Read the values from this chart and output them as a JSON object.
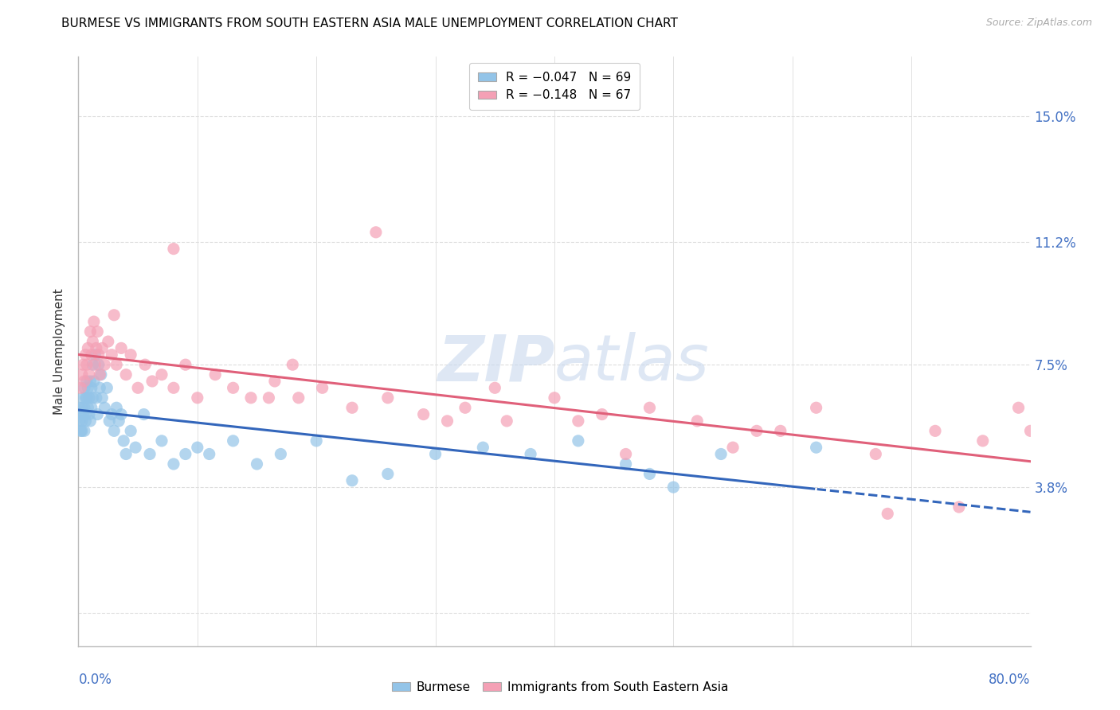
{
  "title": "BURMESE VS IMMIGRANTS FROM SOUTH EASTERN ASIA MALE UNEMPLOYMENT CORRELATION CHART",
  "source": "Source: ZipAtlas.com",
  "ylabel": "Male Unemployment",
  "yticks": [
    0.0,
    0.038,
    0.075,
    0.112,
    0.15
  ],
  "ytick_labels_right": [
    "",
    "3.8%",
    "7.5%",
    "11.2%",
    "15.0%"
  ],
  "xlim": [
    0.0,
    0.8
  ],
  "ylim": [
    -0.01,
    0.168
  ],
  "legend_r1": "R = −0.047",
  "legend_n1": "N = 69",
  "legend_r2": "R = −0.148",
  "legend_n2": "N = 67",
  "color_blue": "#93C4E8",
  "color_pink": "#F4A0B5",
  "color_blue_line": "#3366BB",
  "color_pink_line": "#E0607A",
  "watermark_color": "#C8D8EE",
  "background_color": "#ffffff",
  "grid_color": "#DDDDDD",
  "axis_label_color": "#4472C4",
  "title_fontsize": 11,
  "burmese_x": [
    0.001,
    0.001,
    0.002,
    0.002,
    0.003,
    0.003,
    0.003,
    0.004,
    0.004,
    0.005,
    0.005,
    0.005,
    0.006,
    0.006,
    0.006,
    0.007,
    0.007,
    0.008,
    0.008,
    0.009,
    0.009,
    0.01,
    0.01,
    0.011,
    0.011,
    0.012,
    0.012,
    0.013,
    0.014,
    0.015,
    0.016,
    0.017,
    0.018,
    0.019,
    0.02,
    0.022,
    0.024,
    0.026,
    0.028,
    0.03,
    0.032,
    0.034,
    0.036,
    0.038,
    0.04,
    0.044,
    0.048,
    0.055,
    0.06,
    0.07,
    0.08,
    0.09,
    0.1,
    0.11,
    0.13,
    0.15,
    0.17,
    0.2,
    0.23,
    0.26,
    0.3,
    0.34,
    0.38,
    0.42,
    0.46,
    0.48,
    0.5,
    0.54,
    0.62
  ],
  "burmese_y": [
    0.062,
    0.058,
    0.06,
    0.055,
    0.062,
    0.058,
    0.055,
    0.065,
    0.06,
    0.068,
    0.062,
    0.055,
    0.065,
    0.06,
    0.058,
    0.07,
    0.065,
    0.068,
    0.062,
    0.065,
    0.06,
    0.07,
    0.058,
    0.068,
    0.062,
    0.075,
    0.065,
    0.07,
    0.078,
    0.065,
    0.06,
    0.075,
    0.068,
    0.072,
    0.065,
    0.062,
    0.068,
    0.058,
    0.06,
    0.055,
    0.062,
    0.058,
    0.06,
    0.052,
    0.048,
    0.055,
    0.05,
    0.06,
    0.048,
    0.052,
    0.045,
    0.048,
    0.05,
    0.048,
    0.052,
    0.045,
    0.048,
    0.052,
    0.04,
    0.042,
    0.048,
    0.05,
    0.048,
    0.052,
    0.045,
    0.042,
    0.038,
    0.048,
    0.05
  ],
  "sea_x": [
    0.002,
    0.003,
    0.004,
    0.005,
    0.006,
    0.007,
    0.008,
    0.009,
    0.01,
    0.011,
    0.012,
    0.013,
    0.014,
    0.015,
    0.016,
    0.017,
    0.018,
    0.02,
    0.022,
    0.025,
    0.028,
    0.032,
    0.036,
    0.04,
    0.044,
    0.05,
    0.056,
    0.062,
    0.07,
    0.08,
    0.09,
    0.1,
    0.115,
    0.13,
    0.145,
    0.165,
    0.185,
    0.205,
    0.23,
    0.26,
    0.29,
    0.325,
    0.36,
    0.4,
    0.44,
    0.48,
    0.52,
    0.57,
    0.62,
    0.67,
    0.72,
    0.76,
    0.79,
    0.8,
    0.35,
    0.18,
    0.42,
    0.55,
    0.25,
    0.31,
    0.68,
    0.74,
    0.59,
    0.46,
    0.16,
    0.08,
    0.03
  ],
  "sea_y": [
    0.068,
    0.072,
    0.075,
    0.07,
    0.078,
    0.075,
    0.08,
    0.072,
    0.085,
    0.078,
    0.082,
    0.088,
    0.075,
    0.08,
    0.085,
    0.078,
    0.072,
    0.08,
    0.075,
    0.082,
    0.078,
    0.075,
    0.08,
    0.072,
    0.078,
    0.068,
    0.075,
    0.07,
    0.072,
    0.068,
    0.075,
    0.065,
    0.072,
    0.068,
    0.065,
    0.07,
    0.065,
    0.068,
    0.062,
    0.065,
    0.06,
    0.062,
    0.058,
    0.065,
    0.06,
    0.062,
    0.058,
    0.055,
    0.062,
    0.048,
    0.055,
    0.052,
    0.062,
    0.055,
    0.068,
    0.075,
    0.058,
    0.05,
    0.115,
    0.058,
    0.03,
    0.032,
    0.055,
    0.048,
    0.065,
    0.11,
    0.09
  ]
}
